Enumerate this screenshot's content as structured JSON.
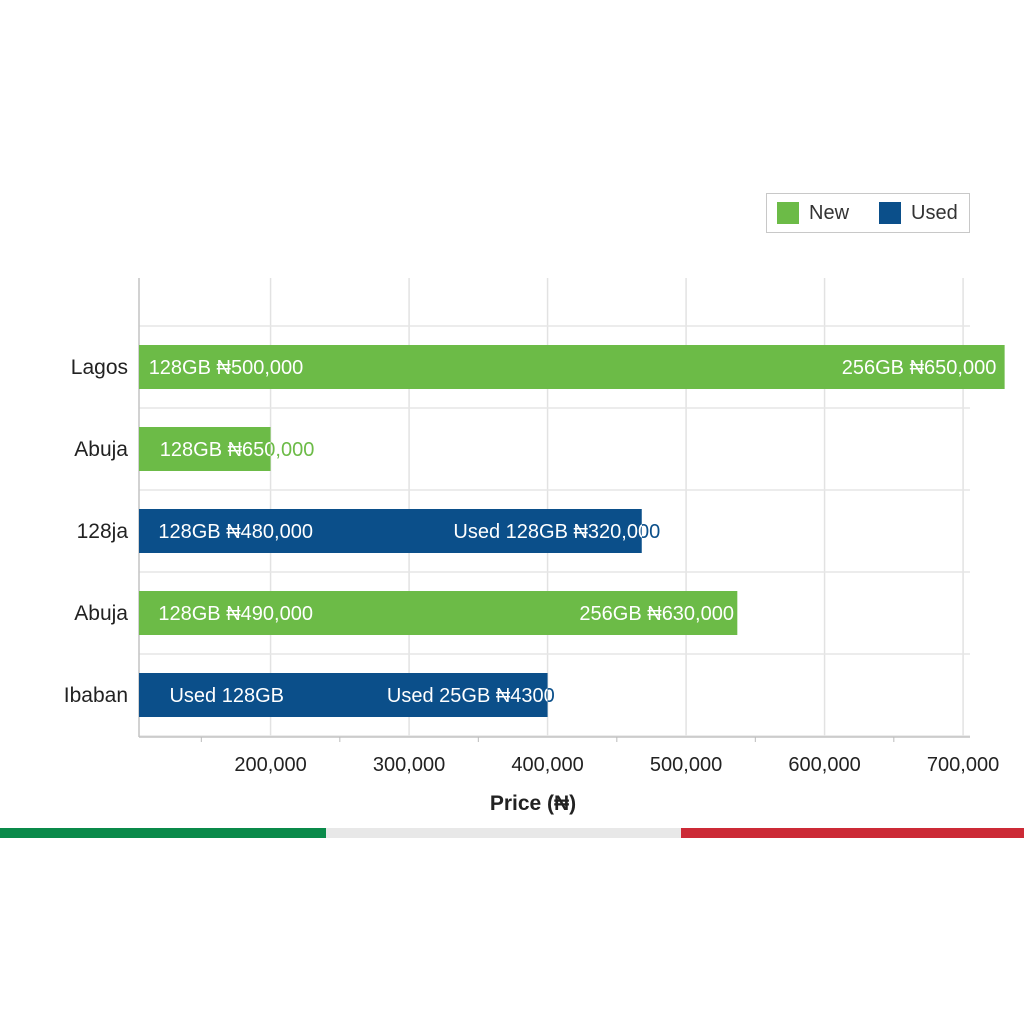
{
  "chart_data": {
    "type": "bar",
    "orientation": "horizontal",
    "xlabel": "Price (₦)",
    "xlim": [
      105000,
      705000
    ],
    "xticks": [
      "200,000",
      "300,000",
      "400,000",
      "500,000",
      "600,000",
      "700,000"
    ],
    "xtick_values": [
      200000,
      300000,
      400000,
      500000,
      600000,
      700000
    ],
    "legend_position": "top-right",
    "grid": true,
    "series": [
      {
        "name": "New",
        "color": "#6cbb47"
      },
      {
        "name": "Used",
        "color": "#0b4f8a"
      }
    ],
    "bars": [
      {
        "category": "Lagos",
        "series": "New",
        "value": 730000,
        "labels": [
          {
            "text": "128GB ₦500,000",
            "at": 112000
          },
          {
            "text": "256GB ₦650,000",
            "at": 724000,
            "anchor": "end"
          }
        ]
      },
      {
        "category": "Abuja",
        "series": "New",
        "value": 200000,
        "labels": [
          {
            "text": "128GB ₦650,000",
            "at": 120000
          }
        ]
      },
      {
        "category": "128ja",
        "series": "Used",
        "value": 468000,
        "labels": [
          {
            "text": "128GB ₦480,000",
            "at": 119000
          },
          {
            "text": "Used 128GB  ₦320,000",
            "at": 332000
          }
        ]
      },
      {
        "category": "Abuja",
        "series": "New",
        "value": 537000,
        "labels": [
          {
            "text": "128GB ₦490,000",
            "at": 119000
          },
          {
            "text": "256GB ₦630,000",
            "at": 423000
          }
        ]
      },
      {
        "category": "Ibaban",
        "series": "Used",
        "value": 400000,
        "labels": [
          {
            "text": "Used 128GB",
            "at": 127000
          },
          {
            "text": "Used 25GB ₦4300",
            "at": 284000
          }
        ]
      }
    ]
  },
  "legend": {
    "items": [
      {
        "label": "New",
        "color": "#6cbb47"
      },
      {
        "label": "Used",
        "color": "#0b4f8a"
      }
    ]
  },
  "flag_colors": [
    "#0a8a4a",
    "#e8e8e8",
    "#cc2a36"
  ]
}
